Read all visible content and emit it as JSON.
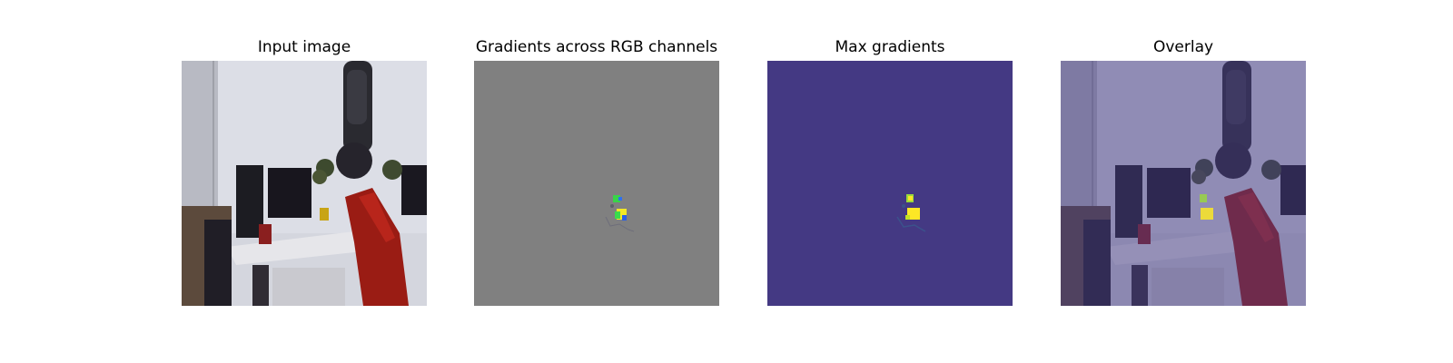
{
  "figure": {
    "panels": [
      {
        "title": "Input image",
        "content": "robot arm workspace photo"
      },
      {
        "title": "Gradients across RGB channels",
        "content": "gradient map on gray background"
      },
      {
        "title": "Max gradients",
        "content": "max-gradient heatmap (viridis)"
      },
      {
        "title": "Overlay",
        "content": "heatmap overlaid on input"
      }
    ],
    "colors": {
      "gray_background": "#808080",
      "viridis_low": "#443983",
      "viridis_high": "#fde725",
      "robot_red": "#9a1c14"
    }
  }
}
